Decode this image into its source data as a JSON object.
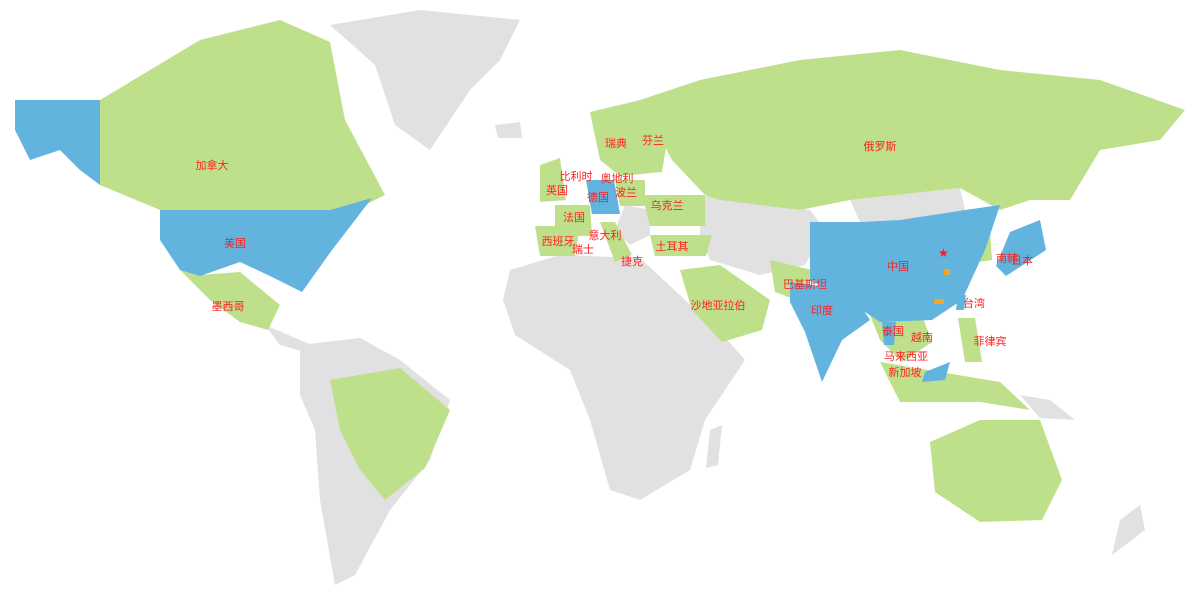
{
  "colors": {
    "covered": "#bfe08a",
    "highlight": "#62b3dd",
    "other": "#e1e1e1",
    "label": "#ff2020",
    "star": "#ff1a1a",
    "office": "#f5a623"
  },
  "labels": {
    "canada": "加拿大",
    "usa": "美国",
    "mexico": "墨西哥",
    "uk": "英国",
    "belgium": "比利时",
    "austria": "奥地利",
    "sweden": "瑞典",
    "finland": "芬兰",
    "germany": "德国",
    "poland": "波兰",
    "france": "法国",
    "ukraine": "乌克兰",
    "spain": "西班牙",
    "italy": "意大利",
    "switzerland": "瑞士",
    "czech": "捷克",
    "turkey": "土耳其",
    "russia": "俄罗斯",
    "saudi": "沙地亚拉伯",
    "pakistan": "巴基斯坦",
    "india": "印度",
    "china": "中国",
    "korea": "南韩",
    "japan": "日本",
    "taiwan": "台湾",
    "thailand": "泰国",
    "vietnam": "越南",
    "philippines": "菲律宾",
    "malaysia": "马来西亚",
    "singapore": "新加坡"
  },
  "markers": {
    "headquarters": "star-icon",
    "offices": "square-icon"
  }
}
